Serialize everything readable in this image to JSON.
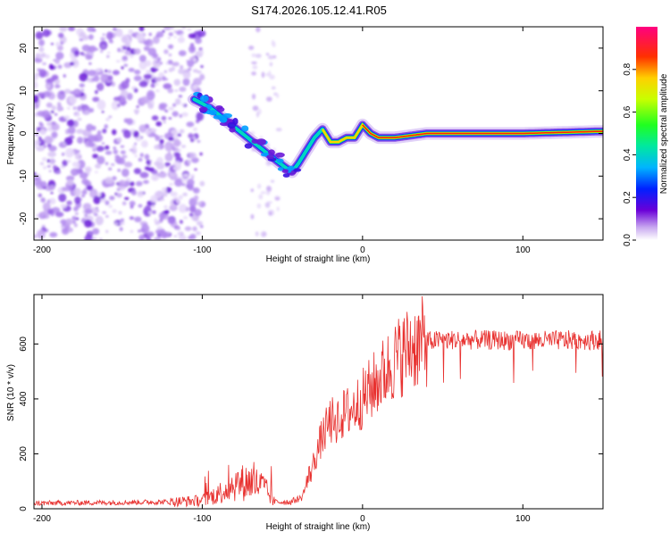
{
  "title": "S174.2026.105.12.41.R05",
  "chart_data": [
    {
      "type": "heatmap",
      "name": "spectrogram",
      "xlabel": "Height of straight line (km)",
      "ylabel": "Frequency (Hz)",
      "xlim": [
        -205,
        150
      ],
      "ylim": [
        -25,
        25
      ],
      "xticks": [
        -200,
        -100,
        0,
        100
      ],
      "xtick_labels": [
        "-200",
        "-100",
        "0",
        "100"
      ],
      "yticks": [
        -20,
        -10,
        0,
        10,
        20
      ],
      "ytick_labels": [
        "-20",
        "-10",
        "0",
        "10",
        "20"
      ],
      "ridge": {
        "description_points_x": [
          -105,
          -95,
          -85,
          -75,
          -65,
          -55,
          -48,
          -44,
          -40,
          -35,
          -30,
          -25,
          -20,
          -15,
          -10,
          -5,
          0,
          5,
          10,
          20,
          40,
          70,
          100,
          150
        ],
        "description_points_y": [
          8,
          6,
          3,
          0,
          -3,
          -6,
          -8,
          -9,
          -7,
          -4,
          -1,
          1,
          -2,
          -2,
          -1,
          -1,
          2,
          0,
          -1,
          -1,
          0,
          0,
          0,
          0.5
        ]
      },
      "colorbar": {
        "label": "Normalized spectral amplitude",
        "range": [
          0.0,
          1.0
        ],
        "ticks": [
          0.0,
          0.2,
          0.4,
          0.6,
          0.8
        ],
        "tick_labels": [
          "0.0",
          "0.2",
          "0.4",
          "0.6",
          "0.8"
        ]
      }
    },
    {
      "type": "line",
      "name": "snr",
      "xlabel": "Height of straight line (km)",
      "ylabel": "SNR (10 * v/v)",
      "xlim": [
        -205,
        150
      ],
      "ylim": [
        0,
        780
      ],
      "xticks": [
        -200,
        -100,
        0,
        100
      ],
      "xtick_labels": [
        "-200",
        "-100",
        "0",
        "100"
      ],
      "yticks": [
        0,
        200,
        400,
        600
      ],
      "ytick_labels": [
        "0",
        "200",
        "400",
        "600"
      ],
      "color": "#e8312f",
      "envelope": {
        "x": [
          -205,
          -120,
          -100,
          -90,
          -80,
          -70,
          -62,
          -55,
          -45,
          -38,
          -32,
          -26,
          -20,
          -15,
          -10,
          -5,
          0,
          10,
          20,
          30,
          40,
          50,
          70,
          100,
          150
        ],
        "y": [
          20,
          25,
          30,
          55,
          90,
          100,
          80,
          25,
          25,
          40,
          140,
          250,
          320,
          330,
          350,
          370,
          400,
          470,
          540,
          590,
          610,
          615,
          615,
          612,
          615
        ]
      }
    }
  ]
}
